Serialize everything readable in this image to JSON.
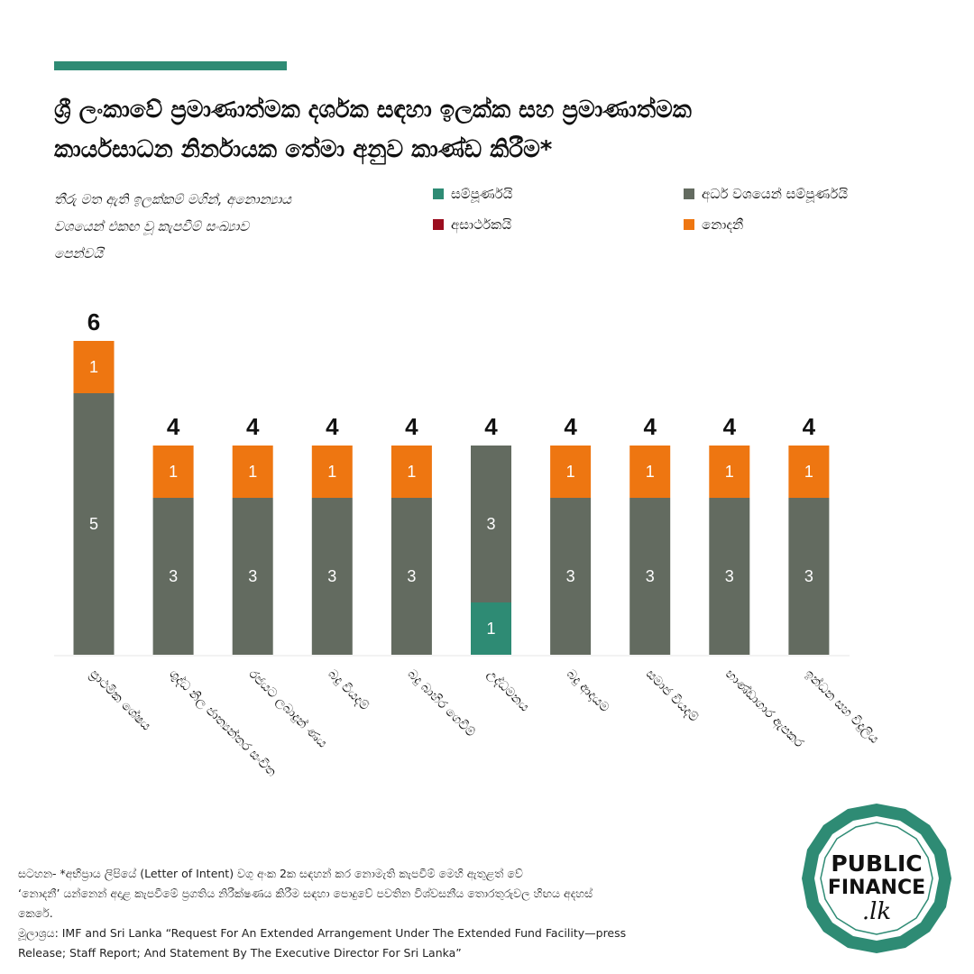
{
  "header": {
    "title_line1": "ශ්‍රී ලංකාවේ ප්‍රමාණාත්මක දර්ශක සඳහා ඉලක්ක සහ ප්‍රමාණාත්මක",
    "title_line2": "කාර්යසාධන නිර්නායක තේමා අනුව කාණ්ඩ කිරීම*",
    "subtitle_line1": "තීරු මත ඇති ඉලක්කම් මගින්, අනොන්‍යාය",
    "subtitle_line2": "වශයෙන් එකඟ වූ කැපවීම් සංඛ්‍යාව",
    "subtitle_line3": "පෙන්වයි"
  },
  "legend": [
    {
      "label": "සම්පූර්ණයි",
      "color": "#2e8b74"
    },
    {
      "label": "අර්ධ වශයෙන් සම්පූර්ණයි",
      "color": "#636b60"
    },
    {
      "label": "අසාර්ථකයි",
      "color": "#9b0d1f"
    },
    {
      "label": "නොදනී",
      "color": "#ee7611"
    }
  ],
  "chart_data": {
    "type": "bar",
    "stacked": true,
    "categories": [
      "ප්‍රාථමික ශේෂය",
      "ශුද්ධ නිල ජාත්‍යන්තර සංචිත",
      "රජයට ලබාදුන් ණය",
      "බදු වියදම්",
      "බදු බාහිර ගෙවීම්",
      "උද්ධමනය",
      "බදු ආදායම",
      "සමාජ වියදම්",
      "භාණ්ඩාගාර ඇපකර",
      "ඉන්ධන සහ විදුලිය"
    ],
    "series": [
      {
        "name": "සම්පූර්ණයි",
        "color": "#2e8b74",
        "values": [
          0,
          0,
          0,
          0,
          0,
          1,
          0,
          0,
          0,
          0
        ]
      },
      {
        "name": "අර්ධ වශයෙන් සම්පූර්ණයි",
        "color": "#636b60",
        "values": [
          5,
          3,
          3,
          3,
          3,
          3,
          3,
          3,
          3,
          3
        ]
      },
      {
        "name": "අසාර්ථකයි",
        "color": "#9b0d1f",
        "values": [
          0,
          0,
          0,
          0,
          0,
          0,
          0,
          0,
          0,
          0
        ]
      },
      {
        "name": "නොදනී",
        "color": "#ee7611",
        "values": [
          1,
          1,
          1,
          1,
          1,
          0,
          1,
          1,
          1,
          1
        ]
      }
    ],
    "totals": [
      6,
      4,
      4,
      4,
      4,
      4,
      4,
      4,
      4,
      4
    ],
    "ylim": [
      0,
      6
    ],
    "grid": false,
    "legend_position": "top-right"
  },
  "footer": {
    "note_line1": "සටහන-  *අභිප්‍රාය ලිපියේ (Letter of Intent) වගු අංක 2ක සඳහන් කර නොමැති කැපවීම් මෙහි ඇතුළත් වේ",
    "note_line2": "‘නොදනී’ යන්නෙන් අදාළ කැපවීමේ ප්‍රගතිය නිරීක්ෂණය කිරීම සඳහා පොදුවේ පවතින විශ්වසනීය තොරතුරුවල හිඟය අදහස්",
    "note_line3": "කෙරේ.",
    "source_line1": "මූලාශ්‍රය: IMF and Sri Lanka “Request For An Extended Arrangement Under The Extended Fund Facility—press",
    "source_line2": "Release; Staff Report; And Statement By The Executive Director For Sri Lanka”"
  },
  "logo": {
    "line1": "PUBLIC",
    "line2": "FINANCE",
    "line3": ".lk",
    "color": "#2e8b74"
  }
}
